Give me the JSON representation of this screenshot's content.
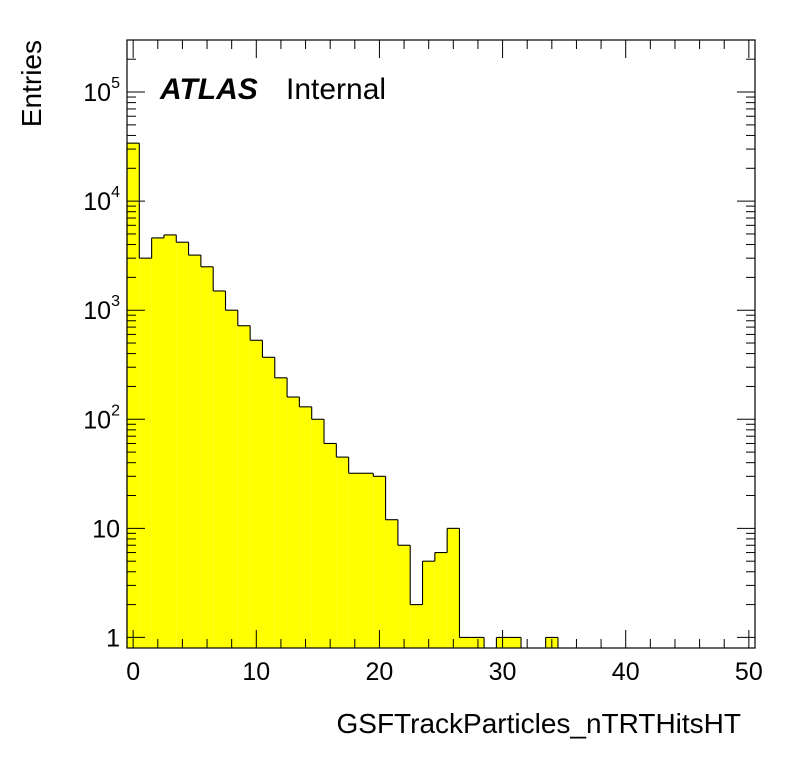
{
  "chart_data": {
    "type": "bar",
    "histogram": true,
    "xlabel": "GSFTrackParticles_nTRTHitsHT",
    "ylabel": "Entries",
    "label_bold": "ATLAS",
    "label_status": "Internal",
    "xlim": [
      -0.5,
      50.5
    ],
    "ylim": [
      0.8,
      300000
    ],
    "y_scale": "log",
    "fill_color": "#ffff00",
    "line_color": "#000000",
    "x_tick_labels": [
      "0",
      "10",
      "20",
      "30",
      "40",
      "50"
    ],
    "x_tick_values": [
      0,
      10,
      20,
      30,
      40,
      50
    ],
    "y_tick_labels": [
      {
        "value": 1,
        "base": "1",
        "exp": ""
      },
      {
        "value": 10,
        "base": "10",
        "exp": ""
      },
      {
        "value": 100,
        "base": "10",
        "exp": "2"
      },
      {
        "value": 1000,
        "base": "10",
        "exp": "3"
      },
      {
        "value": 10000,
        "base": "10",
        "exp": "4"
      },
      {
        "value": 100000,
        "base": "10",
        "exp": "5"
      }
    ],
    "bin_width": 1,
    "bin_centers": [
      0,
      1,
      2,
      3,
      4,
      5,
      6,
      7,
      8,
      9,
      10,
      11,
      12,
      13,
      14,
      15,
      16,
      17,
      18,
      19,
      20,
      21,
      22,
      23,
      24,
      25,
      26,
      27,
      28,
      29,
      30,
      31,
      32,
      33,
      34
    ],
    "values": [
      34000,
      3000,
      4600,
      4900,
      4200,
      3200,
      2500,
      1500,
      1000,
      720,
      530,
      370,
      240,
      160,
      130,
      100,
      60,
      45,
      32,
      32,
      30,
      12,
      7,
      2,
      5,
      6,
      10,
      1,
      1,
      0,
      1,
      1,
      0,
      0,
      1
    ]
  }
}
